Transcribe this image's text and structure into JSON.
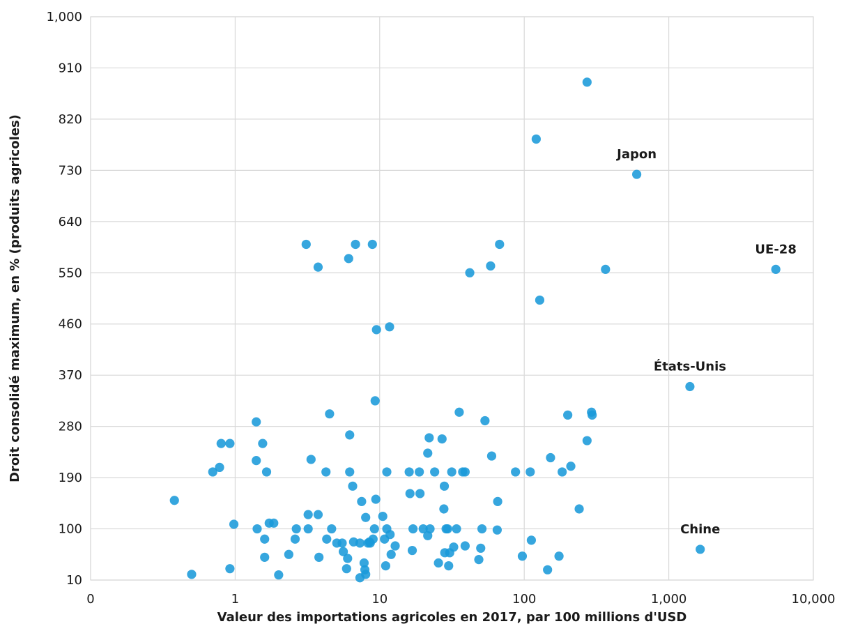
{
  "chart_data": {
    "type": "scatter",
    "title": "",
    "xlabel": "Valeur des importations agricoles en 2017, par 100 millions d'USD",
    "ylabel": "Droit consolidé maximum, en % (produits agricoles)",
    "x_scale": "log",
    "xlim": [
      0.1,
      10000
    ],
    "ylim": [
      10,
      1000
    ],
    "x_ticks": [
      {
        "value": 0.1,
        "label": "0"
      },
      {
        "value": 1,
        "label": "1"
      },
      {
        "value": 10,
        "label": "10"
      },
      {
        "value": 100,
        "label": "100"
      },
      {
        "value": 1000,
        "label": "1,000"
      },
      {
        "value": 10000,
        "label": "10,000"
      }
    ],
    "y_ticks": [
      {
        "value": 10,
        "label": "10"
      },
      {
        "value": 100,
        "label": "100"
      },
      {
        "value": 190,
        "label": "190"
      },
      {
        "value": 280,
        "label": "280"
      },
      {
        "value": 370,
        "label": "370"
      },
      {
        "value": 460,
        "label": "460"
      },
      {
        "value": 550,
        "label": "550"
      },
      {
        "value": 640,
        "label": "640"
      },
      {
        "value": 730,
        "label": "730"
      },
      {
        "value": 820,
        "label": "820"
      },
      {
        "value": 910,
        "label": "910"
      },
      {
        "value": 1000,
        "label": "1,000"
      }
    ],
    "grid": true,
    "legend": "none",
    "color": "#1a9ad9",
    "annotations": [
      {
        "label": "Japon",
        "x": 600,
        "y": 723
      },
      {
        "label": "UE-28",
        "x": 5500,
        "y": 556
      },
      {
        "label": "États-Unis",
        "x": 1400,
        "y": 350
      },
      {
        "label": "Chine",
        "x": 1650,
        "y": 64
      }
    ],
    "points": [
      {
        "x": 0.38,
        "y": 150
      },
      {
        "x": 0.5,
        "y": 20
      },
      {
        "x": 0.7,
        "y": 200
      },
      {
        "x": 0.78,
        "y": 208
      },
      {
        "x": 0.8,
        "y": 250
      },
      {
        "x": 0.92,
        "y": 250
      },
      {
        "x": 0.92,
        "y": 30
      },
      {
        "x": 0.98,
        "y": 108
      },
      {
        "x": 1.4,
        "y": 288
      },
      {
        "x": 1.4,
        "y": 220
      },
      {
        "x": 1.42,
        "y": 100
      },
      {
        "x": 1.55,
        "y": 250
      },
      {
        "x": 1.6,
        "y": 82
      },
      {
        "x": 1.6,
        "y": 50
      },
      {
        "x": 1.65,
        "y": 200
      },
      {
        "x": 1.72,
        "y": 110
      },
      {
        "x": 1.85,
        "y": 110
      },
      {
        "x": 2.0,
        "y": 19
      },
      {
        "x": 2.35,
        "y": 55
      },
      {
        "x": 2.6,
        "y": 82
      },
      {
        "x": 2.65,
        "y": 100
      },
      {
        "x": 3.1,
        "y": 600
      },
      {
        "x": 3.2,
        "y": 125
      },
      {
        "x": 3.2,
        "y": 100
      },
      {
        "x": 3.35,
        "y": 222
      },
      {
        "x": 3.75,
        "y": 560
      },
      {
        "x": 3.75,
        "y": 125
      },
      {
        "x": 3.8,
        "y": 50
      },
      {
        "x": 4.25,
        "y": 200
      },
      {
        "x": 4.3,
        "y": 82
      },
      {
        "x": 4.5,
        "y": 302
      },
      {
        "x": 4.65,
        "y": 100
      },
      {
        "x": 5.05,
        "y": 75
      },
      {
        "x": 5.5,
        "y": 75
      },
      {
        "x": 5.6,
        "y": 60
      },
      {
        "x": 5.9,
        "y": 30
      },
      {
        "x": 6.0,
        "y": 48
      },
      {
        "x": 6.1,
        "y": 575
      },
      {
        "x": 6.2,
        "y": 265
      },
      {
        "x": 6.2,
        "y": 200
      },
      {
        "x": 6.5,
        "y": 175
      },
      {
        "x": 6.6,
        "y": 77
      },
      {
        "x": 6.8,
        "y": 600
      },
      {
        "x": 7.3,
        "y": 75
      },
      {
        "x": 7.3,
        "y": 14
      },
      {
        "x": 7.5,
        "y": 148
      },
      {
        "x": 7.8,
        "y": 40
      },
      {
        "x": 7.9,
        "y": 28
      },
      {
        "x": 8.0,
        "y": 120
      },
      {
        "x": 8.0,
        "y": 20
      },
      {
        "x": 8.3,
        "y": 75
      },
      {
        "x": 8.5,
        "y": 77
      },
      {
        "x": 8.6,
        "y": 75
      },
      {
        "x": 8.9,
        "y": 600
      },
      {
        "x": 9.0,
        "y": 82
      },
      {
        "x": 9.2,
        "y": 100
      },
      {
        "x": 9.3,
        "y": 325
      },
      {
        "x": 9.4,
        "y": 152
      },
      {
        "x": 9.5,
        "y": 450
      },
      {
        "x": 10.5,
        "y": 122
      },
      {
        "x": 10.8,
        "y": 82
      },
      {
        "x": 11.0,
        "y": 35
      },
      {
        "x": 11.2,
        "y": 100
      },
      {
        "x": 11.2,
        "y": 200
      },
      {
        "x": 11.7,
        "y": 455
      },
      {
        "x": 11.8,
        "y": 90
      },
      {
        "x": 12.0,
        "y": 55
      },
      {
        "x": 12.8,
        "y": 70
      },
      {
        "x": 16.0,
        "y": 200
      },
      {
        "x": 16.2,
        "y": 162
      },
      {
        "x": 16.8,
        "y": 62
      },
      {
        "x": 17.0,
        "y": 100
      },
      {
        "x": 18.8,
        "y": 200
      },
      {
        "x": 19.0,
        "y": 162
      },
      {
        "x": 20.0,
        "y": 100
      },
      {
        "x": 21.5,
        "y": 88
      },
      {
        "x": 21.5,
        "y": 233
      },
      {
        "x": 22.0,
        "y": 260
      },
      {
        "x": 22.3,
        "y": 100
      },
      {
        "x": 24.0,
        "y": 200
      },
      {
        "x": 25.5,
        "y": 40
      },
      {
        "x": 27.0,
        "y": 258
      },
      {
        "x": 27.8,
        "y": 135
      },
      {
        "x": 28.0,
        "y": 175
      },
      {
        "x": 28.2,
        "y": 58
      },
      {
        "x": 28.8,
        "y": 100
      },
      {
        "x": 29.5,
        "y": 100
      },
      {
        "x": 30.0,
        "y": 35
      },
      {
        "x": 30.5,
        "y": 58
      },
      {
        "x": 31.5,
        "y": 200
      },
      {
        "x": 32.5,
        "y": 68
      },
      {
        "x": 34.0,
        "y": 100
      },
      {
        "x": 35.5,
        "y": 305
      },
      {
        "x": 37.5,
        "y": 200
      },
      {
        "x": 39.0,
        "y": 200
      },
      {
        "x": 39.0,
        "y": 70
      },
      {
        "x": 42.0,
        "y": 550
      },
      {
        "x": 48.5,
        "y": 46
      },
      {
        "x": 50.0,
        "y": 66
      },
      {
        "x": 51.0,
        "y": 100
      },
      {
        "x": 53.5,
        "y": 290
      },
      {
        "x": 58.5,
        "y": 562
      },
      {
        "x": 59.5,
        "y": 228
      },
      {
        "x": 65.0,
        "y": 98
      },
      {
        "x": 65.5,
        "y": 148
      },
      {
        "x": 67.5,
        "y": 600
      },
      {
        "x": 87.0,
        "y": 200
      },
      {
        "x": 97.0,
        "y": 52
      },
      {
        "x": 110.0,
        "y": 200
      },
      {
        "x": 112.0,
        "y": 80
      },
      {
        "x": 121.0,
        "y": 785
      },
      {
        "x": 128.0,
        "y": 502
      },
      {
        "x": 145.0,
        "y": 28
      },
      {
        "x": 152.0,
        "y": 225
      },
      {
        "x": 174.0,
        "y": 52
      },
      {
        "x": 183.0,
        "y": 200
      },
      {
        "x": 200.0,
        "y": 300
      },
      {
        "x": 210.0,
        "y": 210
      },
      {
        "x": 240.0,
        "y": 135
      },
      {
        "x": 272.0,
        "y": 885
      },
      {
        "x": 272.0,
        "y": 255
      },
      {
        "x": 292.0,
        "y": 305
      },
      {
        "x": 295.0,
        "y": 300
      },
      {
        "x": 365.0,
        "y": 556
      },
      {
        "x": 600.0,
        "y": 723
      },
      {
        "x": 1400.0,
        "y": 350
      },
      {
        "x": 1650.0,
        "y": 64
      },
      {
        "x": 5500.0,
        "y": 556
      }
    ]
  }
}
